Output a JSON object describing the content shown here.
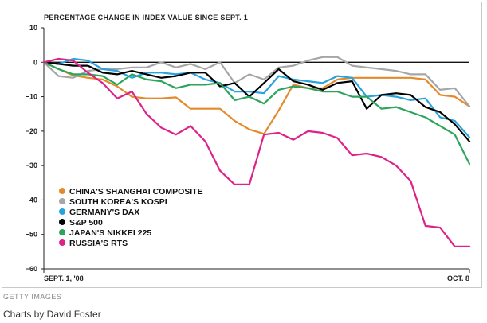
{
  "chart_data": {
    "type": "line",
    "title": "PERCENTAGE CHANGE IN INDEX VALUE SINCE SEPT. 1",
    "ylim": [
      -60,
      10
    ],
    "y_ticks": [
      10,
      0,
      -10,
      -20,
      -30,
      -40,
      -50,
      -60
    ],
    "x_tick_labels": {
      "start": "SEPT. 1, '08",
      "end": "OCT. 8"
    },
    "zero_line": true,
    "grid": false,
    "legend_position": "bottom-left",
    "series": [
      {
        "name": "CHINA'S SHANGHAI COMPOSITE",
        "color": "#e48a2a",
        "values": [
          0,
          -2,
          -3.8,
          -4.5,
          -5,
          -7,
          -10,
          -10.5,
          -10.5,
          -10.2,
          -13.5,
          -13.5,
          -13.5,
          -17,
          -19.5,
          -20.8,
          -14,
          -6.5,
          -7.5,
          -7.5,
          -5,
          -4.5,
          -4.5,
          -4.5,
          -4.5,
          -4.5,
          -5,
          -9.5,
          -10,
          -12.8
        ]
      },
      {
        "name": "SOUTH KOREA'S KOSPI",
        "color": "#a6a6a6",
        "values": [
          0,
          -4,
          -4.5,
          -2.5,
          -2,
          -2,
          -1.5,
          -1.5,
          0,
          -1.5,
          -0.5,
          -2,
          0,
          -6,
          -3.5,
          -5,
          -1.5,
          -1,
          0.5,
          1.5,
          1.5,
          -1,
          -1.5,
          -2,
          -2.5,
          -3.5,
          -3.5,
          -8,
          -7.5,
          -12.8
        ]
      },
      {
        "name": "GERMANY'S DAX",
        "color": "#29a3dd",
        "values": [
          0,
          -0.5,
          1,
          0.5,
          -2,
          -2.5,
          -4.5,
          -3,
          -3,
          -3.5,
          -3,
          -5,
          -6,
          -8.5,
          -8.5,
          -9,
          -4,
          -5,
          -5.5,
          -6,
          -4,
          -4.5,
          -10,
          -9.5,
          -10,
          -11,
          -10.5,
          -16,
          -17,
          -21.8
        ]
      },
      {
        "name": "S&P 500",
        "color": "#000000",
        "values": [
          0,
          -0.5,
          -1,
          -1,
          -3,
          -3.5,
          -2.5,
          -3.5,
          -4.5,
          -4,
          -3,
          -3,
          -7,
          -6,
          -10,
          -6,
          -2,
          -5.5,
          -6.5,
          -8,
          -6,
          -5.5,
          -13.5,
          -9.5,
          -9,
          -9.5,
          -13,
          -14.5,
          -18,
          -23
        ]
      },
      {
        "name": "JAPAN'S NIKKEI 225",
        "color": "#2aa55c",
        "values": [
          0,
          -2,
          -3.5,
          -3.5,
          -4,
          -6.5,
          -3.5,
          -5,
          -5.5,
          -7.5,
          -6.5,
          -6.5,
          -6,
          -11,
          -10,
          -12,
          -8,
          -7,
          -7.5,
          -8.5,
          -8.5,
          -10,
          -10,
          -13.5,
          -13,
          -14.5,
          -16,
          -18.5,
          -21,
          -29.5
        ]
      },
      {
        "name": "RUSSIA'S RTS",
        "color": "#dd2288",
        "values": [
          0,
          1,
          0.5,
          -3,
          -6,
          -10.5,
          -8.5,
          -15,
          -19,
          -21,
          -18.5,
          -23,
          -31.5,
          -35.5,
          -35.5,
          -21,
          -20.5,
          -22.5,
          -20,
          -20.5,
          -22,
          -27,
          -26.5,
          -27.5,
          -30,
          -34.5,
          -47.5,
          -48,
          -53.5,
          -53.5
        ]
      }
    ]
  },
  "credits": {
    "source": "GETTY IMAGES",
    "author": "Charts by David Foster"
  }
}
